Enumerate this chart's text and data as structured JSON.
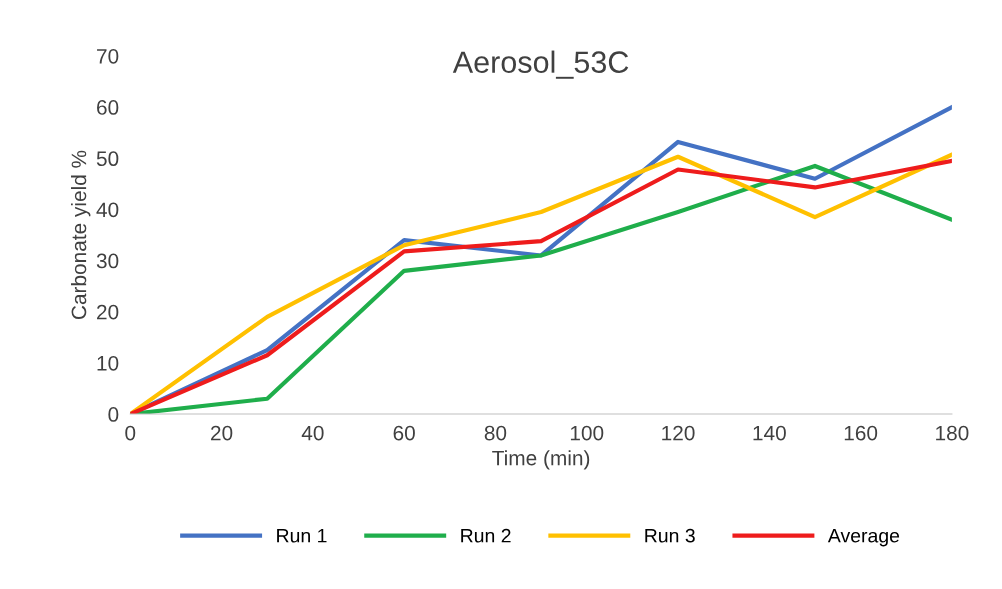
{
  "chart_data": {
    "type": "line",
    "title": "Aerosol_53C",
    "xlabel": "Time (min)",
    "ylabel": "Carbonate yield %",
    "x": [
      0,
      30,
      60,
      90,
      120,
      150,
      180
    ],
    "series": [
      {
        "name": "Run 1",
        "color": "#4472c4",
        "values": [
          0,
          12.5,
          34,
          31,
          53.2,
          46,
          60
        ]
      },
      {
        "name": "Run 2",
        "color": "#1fae4b",
        "values": [
          0,
          3,
          28,
          31,
          39.5,
          48.5,
          38
        ]
      },
      {
        "name": "Run 3",
        "color": "#ffc000",
        "values": [
          0,
          19,
          33,
          39.5,
          50.3,
          38.5,
          50.7
        ]
      },
      {
        "name": "Average",
        "color": "#ee1c1c",
        "values": [
          0,
          11.5,
          31.8,
          33.8,
          47.8,
          44.3,
          49.5
        ]
      }
    ],
    "xlim": [
      0,
      180
    ],
    "xticks": [
      0,
      20,
      40,
      60,
      80,
      100,
      120,
      140,
      160,
      180
    ],
    "ylim": [
      0,
      70
    ],
    "yticks": [
      0,
      10,
      20,
      30,
      40,
      50,
      60,
      70
    ],
    "grid": false,
    "legend": "bottom",
    "marker": "none",
    "line_style": "solid"
  }
}
